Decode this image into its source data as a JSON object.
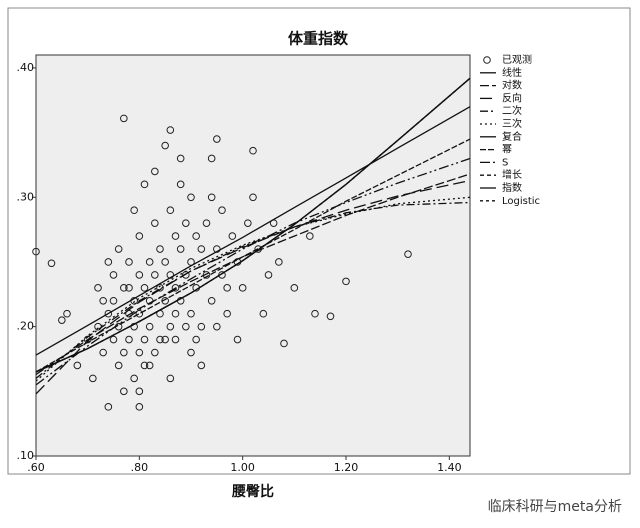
{
  "chart_data": {
    "type": "scatter",
    "title": "体重指数",
    "x_label": "腰臀比",
    "watermark": "临床科研与meta分析",
    "xlim": [
      0.6,
      1.44
    ],
    "ylim": [
      0.1,
      0.41
    ],
    "xticks": [
      {
        "value": 0.6,
        "label": ".60"
      },
      {
        "value": 0.8,
        "label": ".80"
      },
      {
        "value": 1.0,
        "label": "1.00"
      },
      {
        "value": 1.2,
        "label": "1.20"
      },
      {
        "value": 1.4,
        "label": "1.40"
      }
    ],
    "yticks": [
      {
        "value": 0.1,
        "label": ".10"
      },
      {
        "value": 0.2,
        "label": ".20"
      },
      {
        "value": 0.3,
        "label": ".30"
      },
      {
        "value": 0.4,
        "label": ".40"
      }
    ],
    "plot_background": "#eeeeee",
    "series": [
      {
        "name": "已观测",
        "style": "marker",
        "color": "#222222",
        "x": [
          0.7,
          0.72,
          0.73,
          0.74,
          0.75,
          0.75,
          0.76,
          0.76,
          0.77,
          0.77,
          0.78,
          0.78,
          0.78,
          0.79,
          0.79,
          0.79,
          0.8,
          0.8,
          0.8,
          0.8,
          0.81,
          0.81,
          0.81,
          0.82,
          0.82,
          0.82,
          0.83,
          0.83,
          0.83,
          0.84,
          0.84,
          0.84,
          0.85,
          0.85,
          0.85,
          0.86,
          0.86,
          0.86,
          0.87,
          0.87,
          0.87,
          0.88,
          0.88,
          0.88,
          0.89,
          0.89,
          0.9,
          0.9,
          0.9,
          0.91,
          0.91,
          0.92,
          0.92,
          0.93,
          0.93,
          0.94,
          0.94,
          0.95,
          0.96,
          0.96,
          0.97,
          0.98,
          0.99,
          1.0,
          1.01,
          1.02,
          1.03,
          1.05,
          1.07,
          1.1,
          0.68,
          0.66,
          0.71,
          0.72,
          0.74,
          0.76,
          0.79,
          0.81,
          0.83,
          0.85,
          0.88,
          0.9,
          0.92,
          0.86,
          0.8,
          0.77,
          0.84,
          0.82,
          0.78,
          0.75,
          0.73,
          0.87,
          0.89,
          0.91,
          0.95,
          0.97,
          0.99,
          1.04,
          1.06,
          0.94,
          0.6,
          0.63,
          0.77,
          0.86,
          1.32,
          1.14,
          1.17,
          1.08,
          1.13,
          0.8,
          0.74,
          1.2,
          0.65,
          1.02,
          0.95
        ],
        "values": [
          0.19,
          0.2,
          0.18,
          0.21,
          0.19,
          0.22,
          0.17,
          0.2,
          0.23,
          0.18,
          0.21,
          0.19,
          0.25,
          0.16,
          0.22,
          0.2,
          0.24,
          0.18,
          0.21,
          0.27,
          0.19,
          0.23,
          0.17,
          0.22,
          0.25,
          0.2,
          0.24,
          0.18,
          0.28,
          0.21,
          0.23,
          0.26,
          0.19,
          0.25,
          0.22,
          0.24,
          0.29,
          0.2,
          0.23,
          0.27,
          0.21,
          0.26,
          0.31,
          0.22,
          0.24,
          0.28,
          0.25,
          0.21,
          0.3,
          0.27,
          0.23,
          0.26,
          0.2,
          0.28,
          0.24,
          0.22,
          0.3,
          0.26,
          0.24,
          0.29,
          0.21,
          0.27,
          0.25,
          0.23,
          0.28,
          0.3,
          0.26,
          0.24,
          0.25,
          0.23,
          0.17,
          0.21,
          0.16,
          0.23,
          0.25,
          0.26,
          0.29,
          0.31,
          0.32,
          0.34,
          0.33,
          0.18,
          0.17,
          0.16,
          0.15,
          0.15,
          0.19,
          0.17,
          0.23,
          0.24,
          0.22,
          0.19,
          0.2,
          0.19,
          0.2,
          0.23,
          0.19,
          0.21,
          0.28,
          0.33,
          0.258,
          0.249,
          0.361,
          0.352,
          0.256,
          0.21,
          0.208,
          0.187,
          0.27,
          0.138,
          0.138,
          0.235,
          0.205,
          0.336,
          0.345
        ]
      },
      {
        "name": "线性",
        "style": "line",
        "dash": "",
        "color": "#111111",
        "x": [
          0.6,
          0.7,
          0.8,
          0.9,
          1.0,
          1.1,
          1.2,
          1.3,
          1.44
        ],
        "values": [
          0.178,
          0.201,
          0.224,
          0.247,
          0.269,
          0.292,
          0.315,
          0.338,
          0.37
        ]
      },
      {
        "name": "对数",
        "style": "line",
        "dash": "9 3",
        "color": "#111111",
        "x": [
          0.6,
          0.7,
          0.8,
          0.9,
          1.0,
          1.1,
          1.2,
          1.3,
          1.44
        ],
        "values": [
          0.163,
          0.19,
          0.214,
          0.235,
          0.254,
          0.27,
          0.286,
          0.3,
          0.318
        ]
      },
      {
        "name": "反向",
        "style": "line",
        "dash": "12 5",
        "color": "#111111",
        "x": [
          0.6,
          0.7,
          0.8,
          0.9,
          1.0,
          1.1,
          1.2,
          1.3,
          1.44
        ],
        "values": [
          0.148,
          0.189,
          0.219,
          0.243,
          0.261,
          0.277,
          0.29,
          0.301,
          0.313
        ]
      },
      {
        "name": "二次",
        "style": "line",
        "dash": "8 3 2 3",
        "color": "#111111",
        "x": [
          0.6,
          0.7,
          0.8,
          0.9,
          1.0,
          1.1,
          1.2,
          1.3,
          1.44
        ],
        "values": [
          0.16,
          0.192,
          0.22,
          0.243,
          0.262,
          0.277,
          0.288,
          0.294,
          0.296
        ]
      },
      {
        "name": "三次",
        "style": "line",
        "dash": "2 3",
        "color": "#111111",
        "x": [
          0.6,
          0.7,
          0.8,
          0.9,
          1.0,
          1.1,
          1.2,
          1.3,
          1.44
        ],
        "values": [
          0.158,
          0.193,
          0.222,
          0.245,
          0.263,
          0.277,
          0.287,
          0.295,
          0.3
        ]
      },
      {
        "name": "复合",
        "style": "line",
        "dash": "",
        "color": "#111111",
        "x": [
          0.6,
          0.7,
          0.8,
          0.9,
          1.0,
          1.1,
          1.2,
          1.3,
          1.44
        ],
        "values": [
          0.165,
          0.183,
          0.204,
          0.226,
          0.251,
          0.279,
          0.31,
          0.344,
          0.392
        ]
      },
      {
        "name": "幂",
        "style": "line",
        "dash": "6 2",
        "color": "#111111",
        "x": [
          0.6,
          0.7,
          0.8,
          0.9,
          1.0,
          1.1,
          1.2,
          1.3,
          1.44
        ],
        "values": [
          0.165,
          0.188,
          0.21,
          0.232,
          0.254,
          0.275,
          0.297,
          0.317,
          0.345
        ]
      },
      {
        "name": "S",
        "style": "line",
        "dash": "10 3 2 3 2 3",
        "color": "#111111",
        "x": [
          0.6,
          0.7,
          0.8,
          0.9,
          1.0,
          1.1,
          1.2,
          1.3,
          1.44
        ],
        "values": [
          0.155,
          0.185,
          0.213,
          0.237,
          0.26,
          0.28,
          0.296,
          0.311,
          0.33
        ]
      },
      {
        "name": "增长",
        "style": "line",
        "dash": "4 3",
        "color": "#111111",
        "x": [
          0.6,
          0.7,
          0.8,
          0.9,
          1.0,
          1.1,
          1.2,
          1.3,
          1.44
        ],
        "values": [
          0.165,
          0.183,
          0.204,
          0.226,
          0.251,
          0.279,
          0.31,
          0.344,
          0.392
        ]
      },
      {
        "name": "指数",
        "style": "line",
        "dash": "",
        "color": "#111111",
        "x": [
          0.6,
          0.7,
          0.8,
          0.9,
          1.0,
          1.1,
          1.2,
          1.3,
          1.44
        ],
        "values": [
          0.165,
          0.183,
          0.204,
          0.226,
          0.251,
          0.279,
          0.31,
          0.344,
          0.392
        ]
      },
      {
        "name": "Logistic",
        "style": "line",
        "dash": "3 3",
        "color": "#111111",
        "x": [
          0.6,
          0.7,
          0.8,
          0.9,
          1.0,
          1.1,
          1.2,
          1.3,
          1.44
        ],
        "values": [
          0.165,
          0.183,
          0.204,
          0.226,
          0.251,
          0.279,
          0.31,
          0.344,
          0.392
        ]
      }
    ]
  }
}
